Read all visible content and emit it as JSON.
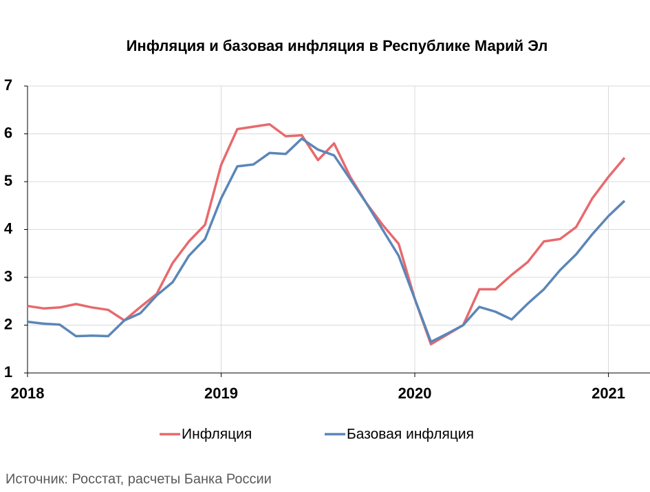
{
  "chart_data": {
    "type": "line",
    "title": "Инфляция и базовая инфляция в Республике Марий Эл",
    "source": "Источник: Росстат, расчеты Банка России",
    "categories": [
      "2018",
      null,
      null,
      null,
      null,
      null,
      null,
      null,
      null,
      null,
      null,
      null,
      "2019",
      null,
      null,
      null,
      null,
      null,
      null,
      null,
      null,
      null,
      null,
      null,
      "2020",
      null,
      null,
      null,
      null,
      null,
      null,
      null,
      null,
      null,
      null,
      null,
      "2021",
      null
    ],
    "series": [
      {
        "name": "Инфляция",
        "color": "#e8696d",
        "values": [
          2.4,
          2.35,
          2.37,
          2.44,
          2.37,
          2.32,
          2.1,
          2.38,
          2.65,
          3.3,
          3.75,
          4.1,
          5.35,
          6.1,
          6.15,
          6.2,
          5.95,
          5.97,
          5.45,
          5.8,
          5.1,
          4.55,
          4.1,
          3.7,
          2.55,
          1.6,
          1.8,
          2.0,
          2.75,
          2.75,
          3.05,
          3.32,
          3.75,
          3.8,
          4.05,
          4.65,
          5.1,
          5.5
        ]
      },
      {
        "name": "Базовая инфляция",
        "color": "#5b86b8",
        "values": [
          2.07,
          2.03,
          2.01,
          1.77,
          1.78,
          1.77,
          2.1,
          2.25,
          2.62,
          2.9,
          3.45,
          3.8,
          4.65,
          5.32,
          5.36,
          5.6,
          5.58,
          5.9,
          5.67,
          5.55,
          5.05,
          4.55,
          4.0,
          3.45,
          2.55,
          1.65,
          1.82,
          2.0,
          2.38,
          2.28,
          2.12,
          2.45,
          2.75,
          3.15,
          3.48,
          3.9,
          4.28,
          4.6
        ]
      }
    ],
    "ylim": [
      1,
      7
    ],
    "yticks": [
      1,
      2,
      3,
      4,
      5,
      6,
      7
    ],
    "grid": true
  }
}
